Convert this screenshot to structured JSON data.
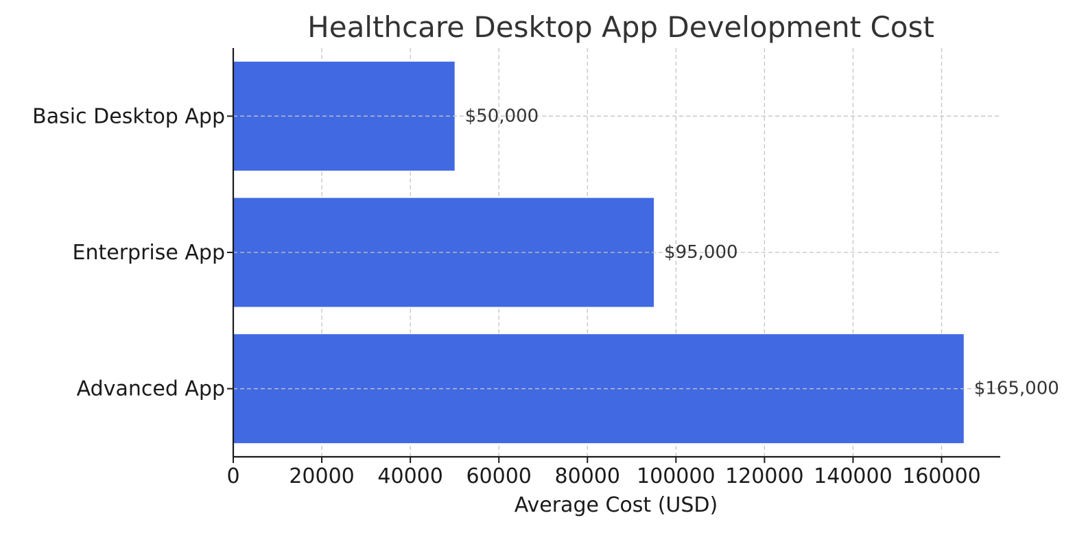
{
  "chart_data": {
    "type": "bar",
    "orientation": "horizontal",
    "title": "Healthcare Desktop App Development Cost",
    "xlabel": "Average Cost (USD)",
    "ylabel": "",
    "categories": [
      "Basic Desktop App",
      "Enterprise App",
      "Advanced App"
    ],
    "values": [
      50000,
      95000,
      165000
    ],
    "value_labels": [
      "$50,000",
      "$95,000",
      "$165,000"
    ],
    "xticks": [
      0,
      20000,
      40000,
      60000,
      80000,
      100000,
      120000,
      140000,
      160000
    ],
    "xtick_labels": [
      "0",
      "20000",
      "40000",
      "60000",
      "80000",
      "100000",
      "120000",
      "140000",
      "160000"
    ],
    "xlim": [
      0,
      173250
    ],
    "grid": true,
    "bar_color": "#4169E1"
  }
}
